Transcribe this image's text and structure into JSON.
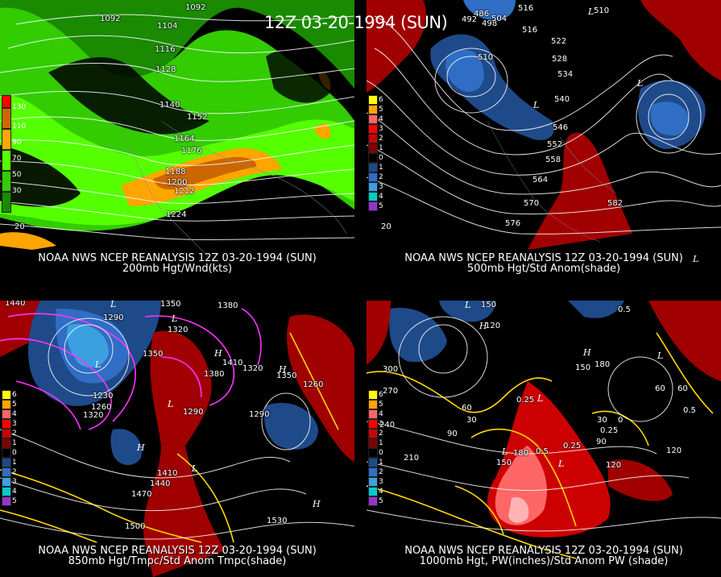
{
  "title": "12Z 03-20-1994 (SUN)",
  "panels": [
    {
      "id": "p200",
      "caption_line1": "NOAA NWS NCEP REANALYSIS 12Z 03-20-1994 (SUN)",
      "caption_line2": "200mb Hgt/Wnd(kts)",
      "legend": [
        "130",
        "110",
        "90",
        "70",
        "50",
        "30"
      ],
      "legend_colors": [
        "#ff0000",
        "#cc6600",
        "#ffa500",
        "#55ff00",
        "#33cc00",
        "#1a8a00"
      ],
      "contour_labels": [
        "1092",
        "1104",
        "1092",
        "1116",
        "1128",
        "1140",
        "1152",
        "1164",
        "1176",
        "1188",
        "1200",
        "1212",
        "1224",
        "20"
      ],
      "lows_highs": []
    },
    {
      "id": "p500",
      "caption_line1": "NOAA NWS NCEP REANALYSIS 12Z 03-20-1994 (SUN)",
      "caption_line2": "500mb Hgt/Std Anom(shade)",
      "legend": [
        "6",
        "5",
        "4",
        "3",
        "2",
        "1",
        "0",
        "1",
        "2",
        "3",
        "4",
        "5"
      ],
      "legend_colors": [
        "#ffff00",
        "#ffa500",
        "#ff6666",
        "#ff0000",
        "#cc0000",
        "#800000",
        "#000000",
        "#1f4a8a",
        "#2f6ec4",
        "#3aa0e0",
        "#00cccc",
        "#9933cc"
      ],
      "contour_labels": [
        "516",
        "510",
        "486",
        "498",
        "492",
        "504",
        "516",
        "510",
        "522",
        "528",
        "534",
        "540",
        "546",
        "552",
        "558",
        "564",
        "570",
        "576",
        "582",
        "20"
      ],
      "lows_highs": [
        "L",
        "L",
        "L",
        "L"
      ]
    },
    {
      "id": "p850",
      "caption_line1": "NOAA NWS NCEP REANALYSIS 12Z 03-20-1994 (SUN)",
      "caption_line2": "850mb Hgt/Tmpc/Std Anom Tmpc(shade)",
      "legend": [
        "6",
        "5",
        "4",
        "3",
        "2",
        "1",
        "0",
        "1",
        "2",
        "3",
        "4",
        "5"
      ],
      "legend_colors": [
        "#ffff00",
        "#ffa500",
        "#ff6666",
        "#ff0000",
        "#cc0000",
        "#800000",
        "#000000",
        "#1f4a8a",
        "#2f6ec4",
        "#3aa0e0",
        "#00cccc",
        "#9933cc"
      ],
      "contour_labels": [
        "1440",
        "1350",
        "1380",
        "1290",
        "1320",
        "1350",
        "1380",
        "1410",
        "1320",
        "1290",
        "1230",
        "1260",
        "1320",
        "1290",
        "1350",
        "1440",
        "1410",
        "1470",
        "1500",
        "1530",
        "1260"
      ],
      "lows_highs": [
        "L",
        "L",
        "L",
        "L",
        "H",
        "H",
        "H",
        "H",
        "L"
      ]
    },
    {
      "id": "p1000",
      "caption_line1": "NOAA NWS NCEP REANALYSIS 12Z 03-20-1994 (SUN)",
      "caption_line2": "1000mb Hgt, PW(inches)/Std Anom PW (shade)",
      "legend": [
        "6",
        "5",
        "4",
        "3",
        "2",
        "1",
        "0",
        "1",
        "2",
        "3",
        "4",
        "5"
      ],
      "legend_colors": [
        "#ffff00",
        "#ffa500",
        "#ff6666",
        "#ff0000",
        "#cc0000",
        "#800000",
        "#000000",
        "#1f4a8a",
        "#2f6ec4",
        "#3aa0e0",
        "#00cccc",
        "#9933cc"
      ],
      "contour_labels": [
        "150",
        "120",
        "300",
        "270",
        "240",
        "210",
        "180",
        "150",
        "120",
        "90",
        "60",
        "30",
        "0",
        "30",
        "60",
        "90",
        "120",
        "0.5",
        "0.5",
        "0.25",
        "0.25",
        "0.5",
        "0.25",
        "180",
        "150",
        "60"
      ],
      "lows_highs": [
        "L",
        "L",
        "L",
        "H",
        "H",
        "L",
        "L"
      ]
    }
  ]
}
